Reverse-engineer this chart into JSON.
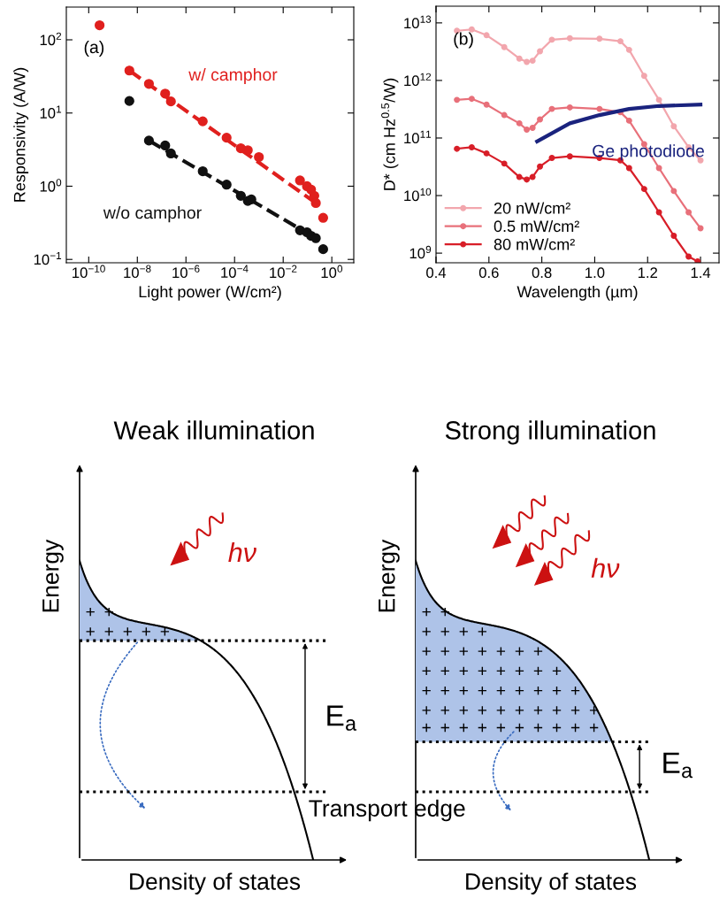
{
  "chart_data": [
    {
      "type": "scatter",
      "xlabel": "Light power (W/cm²)",
      "ylabel": "Responsivity (A/W)",
      "log": "xy",
      "grid": false,
      "legend": false,
      "xlim": [
        1.2e-11,
        8
      ],
      "ylim": [
        0.09,
        280
      ],
      "xticks": [
        {
          "value": 1e-10,
          "label": "10$^{−10}$"
        },
        {
          "value": 1e-08,
          "label": "10$^{−8}$"
        },
        {
          "value": 1e-06,
          "label": "10$^{−6}$"
        },
        {
          "value": 0.0001,
          "label": "10$^{−4}$"
        },
        {
          "value": 0.01,
          "label": "10$^{−2}$"
        },
        {
          "value": 1,
          "label": "10$^{0}$"
        }
      ],
      "yticks": [
        {
          "value": 0.1,
          "label": "10$^{−1}$"
        },
        {
          "value": 1,
          "label": "10$^{0}$"
        },
        {
          "value": 10,
          "label": "10$^{1}$"
        },
        {
          "value": 100,
          "label": "10$^{2}$"
        }
      ],
      "annotations": [
        "(a)"
      ],
      "series": [
        {
          "type": "scatter",
          "name": "w/ camphor",
          "color": "#e0201e",
          "marker": "circle",
          "x": [
            2.8e-10,
            4.7e-09,
            3e-08,
            1.4e-07,
            2.4e-07,
            4.9e-06,
            4.7e-05,
            0.00018,
            0.00035,
            0.001,
            0.049,
            0.095,
            0.14,
            0.19,
            0.22,
            0.44
          ],
          "values": [
            158,
            38,
            25,
            18.4,
            14.4,
            7.7,
            4.6,
            3.3,
            3.1,
            2.5,
            1.2,
            1.0,
            0.9,
            0.74,
            0.59,
            0.37
          ]
        },
        {
          "type": "scatter",
          "name": "w/o camphor",
          "color": "#111111",
          "marker": "circle",
          "x": [
            4.7e-09,
            3e-08,
            1.4e-07,
            2.4e-07,
            4.9e-06,
            4.7e-05,
            0.00018,
            0.00035,
            0.00049,
            0.049,
            0.095,
            0.14,
            0.22,
            0.44
          ],
          "values": [
            14.6,
            4.2,
            3.6,
            2.8,
            1.6,
            1.05,
            0.74,
            0.63,
            0.66,
            0.25,
            0.235,
            0.21,
            0.195,
            0.138
          ]
        },
        {
          "type": "line",
          "color": "#e0201e",
          "line_style": "dashed",
          "x": [
            4.7e-09,
            0.22
          ],
          "values": [
            38,
            0.59
          ]
        },
        {
          "type": "line",
          "color": "#111111",
          "line_style": "dashed",
          "x": [
            3e-08,
            0.22
          ],
          "values": [
            4.2,
            0.195
          ]
        }
      ]
    },
    {
      "type": "line",
      "xlabel": "Wavelength (µm)",
      "ylabel": "D* (cm Hz$^{0.5}$/W)",
      "log": "y",
      "grid": false,
      "legend": "lower left",
      "xlim": [
        0.4,
        1.47
      ],
      "ylim": [
        680000000.0,
        19500000000000.0
      ],
      "xticks": [
        0.4,
        0.6,
        0.8,
        {
          "value": 1,
          "label": "1.0"
        },
        1.2,
        1.4
      ],
      "yticks": [
        {
          "value": 1000000000.0,
          "label": "10$^{9}$"
        },
        {
          "value": 10000000000.0,
          "label": "10$^{10}$"
        },
        {
          "value": 100000000000.0,
          "label": "10$^{11}$"
        },
        {
          "value": 1000000000000.0,
          "label": "10$^{12}$"
        },
        {
          "value": 10000000000000.0,
          "label": "10$^{13}$"
        }
      ],
      "annotations": [
        "(b)"
      ],
      "series": [
        {
          "name": "20 nW/cm²",
          "color": "#f2a6ad",
          "marker": "circle",
          "x": [
            0.479,
            0.535,
            0.591,
            0.658,
            0.715,
            0.743,
            0.765,
            0.793,
            0.838,
            0.906,
            1.018,
            1.097,
            1.13,
            1.187,
            1.243,
            1.299,
            1.355,
            1.4
          ],
          "values": [
            7300000000000.0,
            7700000000000.0,
            6100000000000.0,
            3800000000000.0,
            2400000000000.0,
            2100000000000.0,
            2200000000000.0,
            3200000000000.0,
            5100000000000.0,
            5400000000000.0,
            5300000000000.0,
            4800000000000.0,
            3400000000000.0,
            1200000000000.0,
            460000000000.0,
            160000000000.0,
            69000000000.0,
            41000000000.0
          ]
        },
        {
          "name": "0.5 mW/cm²",
          "color": "#e8707a",
          "marker": "circle",
          "x": [
            0.479,
            0.535,
            0.591,
            0.658,
            0.715,
            0.743,
            0.765,
            0.793,
            0.838,
            0.906,
            1.018,
            1.097,
            1.13,
            1.187,
            1.243,
            1.299,
            1.355,
            1.4
          ],
          "values": [
            460000000000.0,
            480000000000.0,
            380000000000.0,
            250000000000.0,
            180000000000.0,
            140000000000.0,
            150000000000.0,
            210000000000.0,
            320000000000.0,
            340000000000.0,
            320000000000.0,
            280000000000.0,
            200000000000.0,
            78000000000.0,
            30000000000.0,
            12000000000.0,
            5100000000.0,
            2700000000.0
          ]
        },
        {
          "name": "80 mW/cm²",
          "color": "#d81e28",
          "marker": "circle",
          "x": [
            0.479,
            0.535,
            0.591,
            0.658,
            0.715,
            0.743,
            0.765,
            0.793,
            0.838,
            0.906,
            1.018,
            1.097,
            1.13,
            1.187,
            1.243,
            1.299,
            1.355,
            1.389
          ],
          "values": [
            65000000000.0,
            69000000000.0,
            54000000000.0,
            36000000000.0,
            21000000000.0,
            19000000000.0,
            21000000000.0,
            32000000000.0,
            45000000000.0,
            48000000000.0,
            45000000000.0,
            41000000000.0,
            30000000000.0,
            13000000000.0,
            5100000000.0,
            2000000000.0,
            870000000.0,
            720000000.0
          ]
        },
        {
          "name": "Ge photodiode",
          "color": "#1a237e",
          "marker": "none",
          "x": [
            0.782,
            0.906,
            1.018,
            1.13,
            1.243,
            1.4
          ],
          "values": [
            87000000000.0,
            180000000000.0,
            250000000000.0,
            320000000000.0,
            360000000000.0,
            380000000000.0
          ]
        }
      ]
    },
    {
      "type": "other",
      "title": "Weak illumination",
      "xlabel": "Density of states",
      "ylabel": "Energy",
      "annotations": [
        "hν",
        "E$_{a}$",
        "Transport edge"
      ]
    },
    {
      "type": "other",
      "title": "Strong illumination",
      "xlabel": "Density of states",
      "ylabel": "Energy",
      "annotations": [
        "hν",
        "E$_{a}$"
      ]
    }
  ]
}
